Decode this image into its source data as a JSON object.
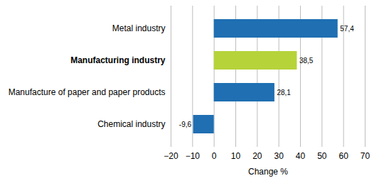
{
  "chart_data": {
    "type": "bar",
    "orientation": "horizontal",
    "categories": [
      "Metal industry",
      "Manufacturing industry",
      "Manufacture of paper and paper products",
      "Chemical industry"
    ],
    "values": [
      57.4,
      38.5,
      28.1,
      -9.6
    ],
    "value_labels": [
      "57,4",
      "38,5",
      "28,1",
      "-9,6"
    ],
    "colors": [
      "#1f6fb2",
      "#b6d33a",
      "#1f6fb2",
      "#1f6fb2"
    ],
    "xlabel": "Change %",
    "xlim": [
      -20,
      70
    ],
    "xticks": [
      -20,
      -10,
      0,
      10,
      20,
      30,
      40,
      50,
      60,
      70
    ],
    "grid": true,
    "data_labels": true
  }
}
